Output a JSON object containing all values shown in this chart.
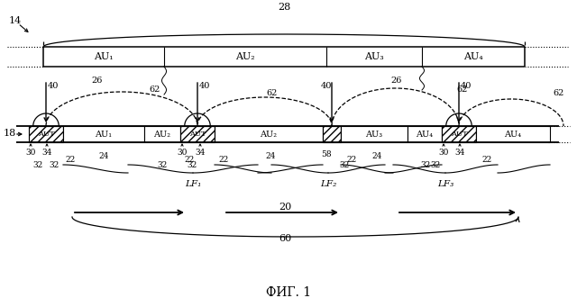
{
  "title": "ФИГ. 1",
  "bg_color": "#ffffff",
  "line_color": "#000000",
  "au_labels_top": [
    "AU₁",
    "AU₂",
    "AU₃",
    "AU₄"
  ],
  "lf_labels": [
    "LF₁",
    "LF₂",
    "LF₃"
  ]
}
